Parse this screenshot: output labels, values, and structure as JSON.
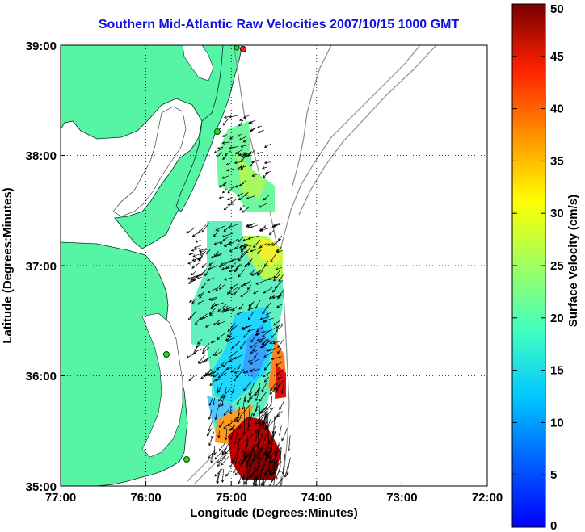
{
  "title": "Southern Mid-Atlantic Raw Velocities 2007/10/15 1000 GMT",
  "xlabel": "Longitude (Degrees:Minutes)",
  "ylabel": "Latitude (Degrees:Minutes)",
  "x_ticks": [
    "77:00",
    "76:00",
    "75:00",
    "74:00",
    "73:00",
    "72:00"
  ],
  "y_ticks": [
    "39:00",
    "38:00",
    "37:00",
    "36:00",
    "35:00"
  ],
  "colorbar": {
    "label": "Surface Velocity (cm/s)",
    "ticks": [
      "50",
      "45",
      "40",
      "35",
      "30",
      "25",
      "20",
      "15",
      "10",
      "5",
      "0"
    ],
    "range": [
      0,
      50
    ]
  },
  "colors": {
    "land": "#55f5a5",
    "title": "#1010e0",
    "bathymetry": "#8c8c8c",
    "station": "#22dd22",
    "station_alt": "#ee2222"
  }
}
